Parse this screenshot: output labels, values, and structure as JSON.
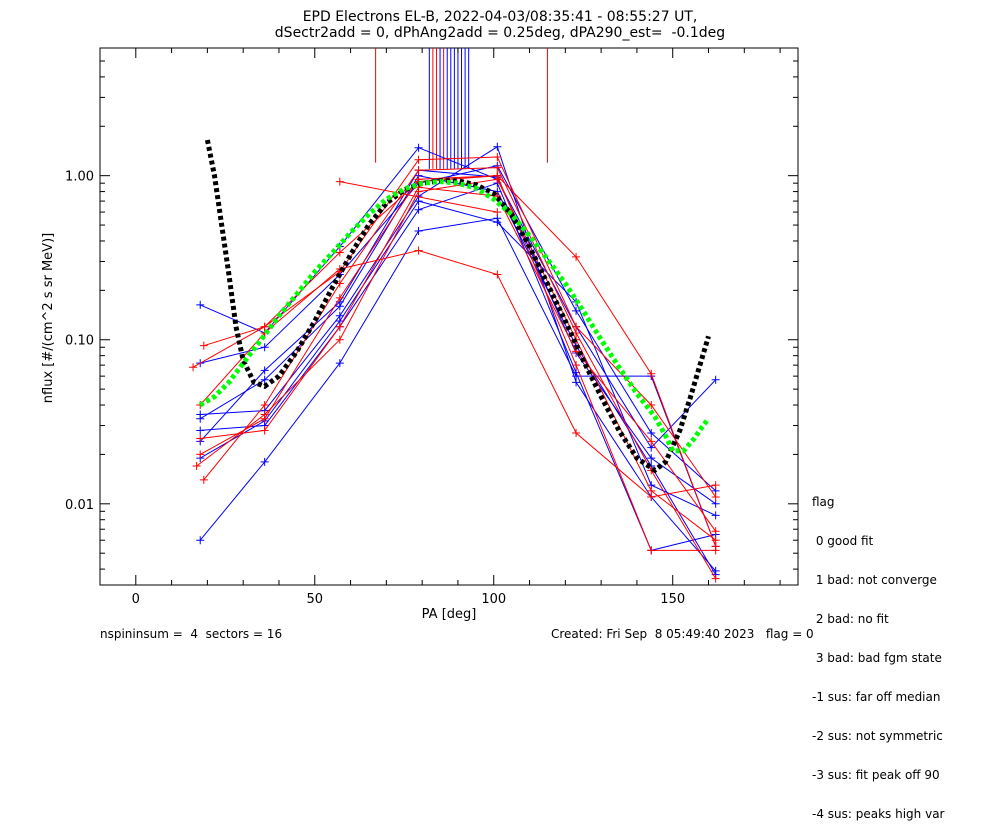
{
  "header": {
    "title": "EPD Electrons EL-B, 2022-04-03/08:35:41 - 08:55:27 UT,",
    "subtitle": "dSectr2add = 0, dPhAng2add = 0.25deg, dPA290_est=  -0.1deg"
  },
  "footer": {
    "left": "nspininsum =  4  sectors = 16",
    "right": "Created: Fri Sep  8 05:49:40 2023   flag = 0"
  },
  "legend": {
    "title": "flag",
    "items": [
      " 0 good fit",
      " 1 bad: not converge",
      " 2 bad: no fit",
      " 3 bad: bad fgm state",
      "-1 sus: far off median",
      "-2 sus: not symmetric",
      "-3 sus: fit peak off 90",
      "-4 sus: peaks high var"
    ]
  },
  "colors": {
    "blue": "#0000ff",
    "red": "#ff0000",
    "black": "#000000",
    "green": "#00ff00"
  },
  "chart_data": {
    "type": "line",
    "xlabel": "PA [deg]",
    "ylabel": "nflux [#/(cm^2 s sr MeV)]",
    "xlim": [
      -10,
      185
    ],
    "ylim": [
      0.0032,
      6.0
    ],
    "yscale": "log",
    "xticks": [
      0,
      50,
      100,
      150
    ],
    "yticks": [
      0.01,
      0.1,
      1.0
    ],
    "ytick_labels": [
      "0.01",
      "0.10",
      "1.00"
    ],
    "series": [
      {
        "color": "blue",
        "x": [
          18,
          36,
          57,
          79,
          101,
          123,
          144,
          162
        ],
        "y": [
          0.006,
          0.018,
          0.072,
          0.46,
          0.55,
          0.06,
          0.06,
          0.0055
        ]
      },
      {
        "color": "blue",
        "x": [
          18,
          36,
          57,
          79,
          101,
          123,
          144,
          162
        ],
        "y": [
          0.028,
          0.03,
          0.12,
          0.62,
          0.9,
          0.063,
          0.0052,
          0.0065
        ]
      },
      {
        "color": "blue",
        "x": [
          18,
          36,
          57,
          79,
          101,
          123,
          144,
          162
        ],
        "y": [
          0.035,
          0.037,
          0.14,
          0.75,
          1.5,
          0.055,
          0.011,
          0.0039
        ]
      },
      {
        "color": "blue",
        "x": [
          18,
          36,
          57,
          79,
          101,
          123,
          144,
          162
        ],
        "y": [
          0.024,
          0.065,
          0.17,
          1.08,
          0.98,
          0.083,
          0.019,
          0.01
        ]
      },
      {
        "color": "blue",
        "x": [
          18,
          36,
          57,
          79,
          101,
          123,
          144,
          162
        ],
        "y": [
          0.163,
          0.11,
          0.37,
          1.48,
          0.95,
          0.12,
          0.022,
          0.057
        ]
      },
      {
        "color": "blue",
        "x": [
          18,
          36,
          57,
          79,
          101,
          123,
          144,
          162
        ],
        "y": [
          0.072,
          0.09,
          0.25,
          0.9,
          1.15,
          0.15,
          0.027,
          0.012
        ]
      },
      {
        "color": "blue",
        "x": [
          18,
          36,
          57,
          79,
          101,
          123,
          144,
          162
        ],
        "y": [
          0.033,
          0.057,
          0.16,
          1.0,
          0.8,
          0.092,
          0.017,
          0.0037
        ]
      },
      {
        "color": "blue",
        "x": [
          18,
          36,
          57,
          79,
          101,
          123,
          144,
          162
        ],
        "y": [
          0.019,
          0.032,
          0.13,
          0.7,
          0.52,
          0.17,
          0.013,
          0.0085
        ]
      },
      {
        "color": "red",
        "x": [
          16,
          36,
          57,
          79,
          101,
          123,
          144,
          162
        ],
        "y": [
          0.068,
          0.12,
          0.34,
          0.92,
          1.0,
          0.32,
          0.062,
          0.0055
        ]
      },
      {
        "color": "red",
        "x": [
          18,
          36,
          57,
          79,
          101,
          123,
          144,
          162
        ],
        "y": [
          0.04,
          0.11,
          0.27,
          0.35,
          0.25,
          0.027,
          0.011,
          0.013
        ]
      },
      {
        "color": "red",
        "x": [
          19,
          36,
          57,
          79,
          101,
          123,
          144,
          162
        ],
        "y": [
          0.092,
          0.12,
          0.26,
          1.25,
          1.3,
          0.12,
          0.04,
          0.011
        ]
      },
      {
        "color": "red",
        "x": [
          17,
          36,
          57,
          79,
          101,
          123,
          144,
          162
        ],
        "y": [
          0.017,
          0.035,
          0.1,
          0.8,
          0.95,
          0.1,
          0.012,
          0.006
        ]
      },
      {
        "color": "red",
        "x": [
          18,
          36,
          57,
          79,
          101,
          123,
          144,
          162
        ],
        "y": [
          0.02,
          0.033,
          0.18,
          0.95,
          1.0,
          0.07,
          0.0052,
          0.0052
        ]
      },
      {
        "color": "red",
        "x": [
          19,
          36,
          57,
          79,
          101,
          123,
          144,
          162
        ],
        "y": [
          0.014,
          0.04,
          0.22,
          1.08,
          1.12,
          0.11,
          0.016,
          0.0035
        ]
      },
      {
        "color": "red",
        "x": [
          18,
          36,
          57,
          79,
          101,
          123,
          144,
          162
        ],
        "y": [
          0.025,
          0.028,
          0.12,
          0.85,
          0.75,
          0.085,
          0.024,
          0.0068
        ]
      },
      {
        "color": "red",
        "x": [
          57,
          101
        ],
        "y": [
          0.92,
          0.6
        ]
      }
    ],
    "fits": [
      {
        "color": "black",
        "x": [
          20,
          22,
          24,
          26,
          28,
          30,
          33,
          36,
          40,
          45,
          50,
          55,
          60,
          65,
          70,
          75,
          80,
          85,
          90,
          95,
          100,
          105,
          110,
          115,
          120,
          125,
          130,
          135,
          140,
          145,
          148,
          152,
          155,
          158,
          160
        ],
        "y": [
          1.65,
          1.0,
          0.5,
          0.25,
          0.12,
          0.075,
          0.055,
          0.052,
          0.06,
          0.085,
          0.13,
          0.21,
          0.33,
          0.5,
          0.68,
          0.82,
          0.9,
          0.93,
          0.93,
          0.88,
          0.78,
          0.58,
          0.37,
          0.22,
          0.13,
          0.075,
          0.045,
          0.028,
          0.019,
          0.016,
          0.018,
          0.028,
          0.045,
          0.075,
          0.105
        ]
      },
      {
        "color": "green",
        "x": [
          18,
          22,
          26,
          30,
          35,
          40,
          45,
          50,
          55,
          60,
          65,
          70,
          75,
          80,
          85,
          90,
          95,
          100,
          105,
          110,
          115,
          120,
          125,
          130,
          135,
          140,
          145,
          148,
          150,
          153,
          156,
          158,
          160
        ],
        "y": [
          0.04,
          0.045,
          0.055,
          0.072,
          0.1,
          0.14,
          0.19,
          0.26,
          0.34,
          0.45,
          0.58,
          0.72,
          0.83,
          0.9,
          0.92,
          0.9,
          0.84,
          0.72,
          0.58,
          0.43,
          0.31,
          0.22,
          0.15,
          0.1,
          0.068,
          0.047,
          0.034,
          0.026,
          0.021,
          0.021,
          0.025,
          0.029,
          0.033
        ]
      }
    ],
    "markers": [
      {
        "color": "red",
        "x": [
          67,
          115
        ],
        "y_low": 1.2
      },
      {
        "color": "red",
        "x": [
          83,
          84,
          86
        ],
        "y_low": 1.1
      },
      {
        "color": "blue",
        "x": [
          82,
          85,
          87,
          88,
          89,
          90,
          91,
          92,
          93
        ],
        "y_low": 1.1
      }
    ]
  }
}
